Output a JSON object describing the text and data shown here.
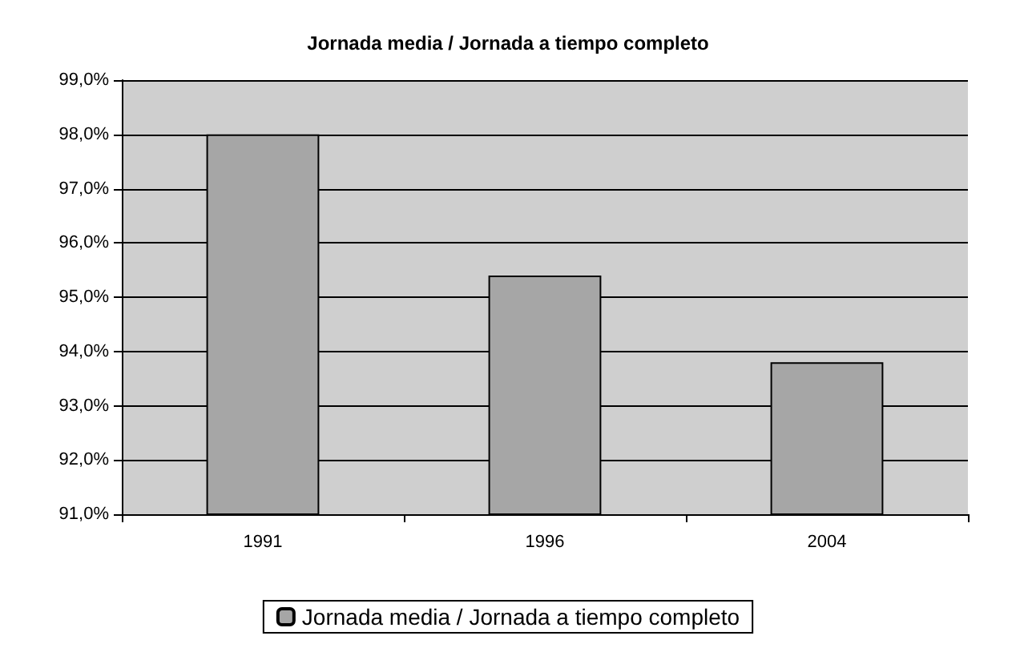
{
  "chart_data": {
    "type": "bar",
    "title": "Jornada media / Jornada a tiempo completo",
    "categories": [
      "1991",
      "1996",
      "2004"
    ],
    "series": [
      {
        "name": "Jornada media / Jornada a tiempo completo",
        "color": "#a6a6a6",
        "values": [
          98.0,
          95.4,
          93.8
        ]
      }
    ],
    "ylim": [
      91,
      99
    ],
    "yticks": [
      {
        "value": 91,
        "label": "91,0%"
      },
      {
        "value": 92,
        "label": "92,0%"
      },
      {
        "value": 93,
        "label": "93,0%"
      },
      {
        "value": 94,
        "label": "94,0%"
      },
      {
        "value": 95,
        "label": "95,0%"
      },
      {
        "value": 96,
        "label": "96,0%"
      },
      {
        "value": 97,
        "label": "97,0%"
      },
      {
        "value": 98,
        "label": "98,0%"
      },
      {
        "value": 99,
        "label": "99,0%"
      }
    ],
    "grid": "y",
    "legend": "bottom"
  }
}
